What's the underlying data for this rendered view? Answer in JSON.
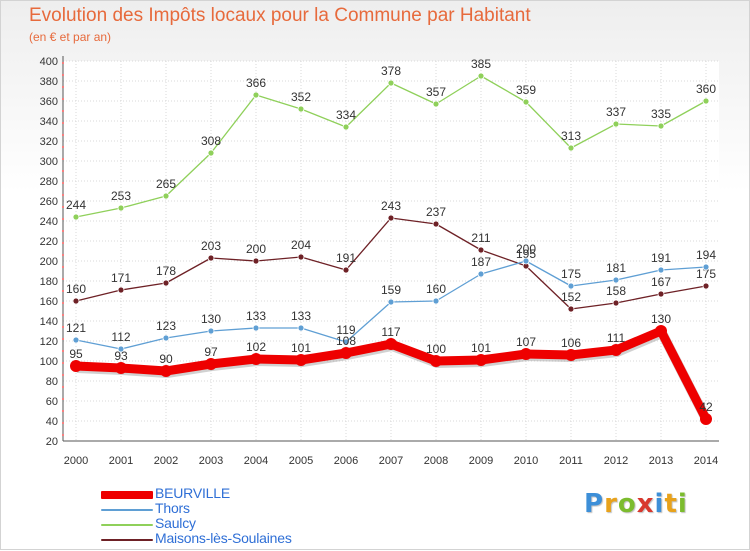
{
  "header": {
    "title": "Evolution des Impôts locaux pour la Commune par Habitant",
    "subtitle": "(en € et par an)"
  },
  "logo": {
    "letters": [
      "P",
      "r",
      "o",
      "x",
      "i",
      "t",
      "i"
    ]
  },
  "chart_data": {
    "type": "line",
    "title": "Evolution des Impôts locaux pour la Commune par Habitant",
    "subtitle": "(en € et par an)",
    "xlabel": "",
    "ylabel": "",
    "categories": [
      "2000",
      "2001",
      "2002",
      "2003",
      "2004",
      "2005",
      "2006",
      "2007",
      "2008",
      "2009",
      "2010",
      "2011",
      "2012",
      "2013",
      "2014"
    ],
    "ylim": [
      20,
      400
    ],
    "yticks": [
      20,
      40,
      60,
      80,
      100,
      120,
      140,
      160,
      180,
      200,
      220,
      240,
      260,
      280,
      300,
      320,
      340,
      360,
      380,
      400
    ],
    "grid": true,
    "legend_position": "bottom-left",
    "series": [
      {
        "name": "BEURVILLE",
        "color": "#ee0000",
        "emphasis": "thick",
        "values": [
          95,
          93,
          90,
          97,
          102,
          101,
          108,
          117,
          100,
          101,
          107,
          106,
          111,
          130,
          42
        ]
      },
      {
        "name": "Thors",
        "color": "#5f9fd4",
        "values": [
          121,
          112,
          123,
          130,
          133,
          133,
          119,
          159,
          160,
          187,
          200,
          175,
          181,
          191,
          194
        ]
      },
      {
        "name": "Saulcy",
        "color": "#8fd05a",
        "values": [
          244,
          253,
          265,
          308,
          366,
          352,
          334,
          378,
          357,
          385,
          359,
          313,
          337,
          335,
          360
        ]
      },
      {
        "name": "Maisons-lès-Soulaines",
        "color": "#6e2126",
        "values": [
          160,
          171,
          178,
          203,
          200,
          204,
          191,
          243,
          237,
          211,
          195,
          152,
          158,
          167,
          175
        ]
      }
    ]
  }
}
